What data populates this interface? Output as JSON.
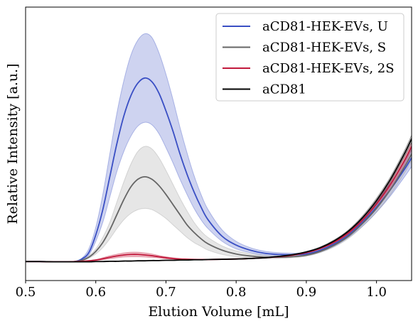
{
  "chart_data": {
    "type": "line",
    "title": "",
    "xlabel": "Elution Volume [mL]",
    "ylabel": "Relative Intensity [a.u.]",
    "xlim": [
      0.5,
      1.05
    ],
    "ylim": [
      -0.03,
      1.05
    ],
    "xticks": [
      0.5,
      0.6,
      0.7,
      0.8,
      0.9,
      1.0
    ],
    "xtick_labels": [
      "0.5",
      "0.6",
      "0.7",
      "0.8",
      "0.9",
      "1.0"
    ],
    "yticks_visible": false,
    "grid": false,
    "legend_position": "top-right",
    "x": [
      0.5,
      0.52,
      0.54,
      0.56,
      0.57,
      0.58,
      0.59,
      0.6,
      0.61,
      0.62,
      0.63,
      0.64,
      0.65,
      0.66,
      0.67,
      0.68,
      0.69,
      0.7,
      0.71,
      0.72,
      0.73,
      0.74,
      0.75,
      0.76,
      0.78,
      0.8,
      0.82,
      0.84,
      0.86,
      0.88,
      0.9,
      0.92,
      0.94,
      0.96,
      0.98,
      1.0,
      1.02,
      1.04,
      1.05
    ],
    "series": [
      {
        "name": "aCD81-HEK-EVs, U",
        "color": "#3a4fc4",
        "band_color": "#3a4fc4",
        "values": [
          0.045,
          0.045,
          0.044,
          0.044,
          0.045,
          0.055,
          0.08,
          0.15,
          0.25,
          0.38,
          0.51,
          0.62,
          0.7,
          0.75,
          0.77,
          0.755,
          0.71,
          0.64,
          0.56,
          0.47,
          0.39,
          0.32,
          0.26,
          0.21,
          0.145,
          0.11,
          0.09,
          0.078,
          0.073,
          0.072,
          0.075,
          0.09,
          0.115,
          0.15,
          0.2,
          0.26,
          0.33,
          0.41,
          0.455
        ],
        "lower": [
          0.045,
          0.045,
          0.044,
          0.044,
          0.045,
          0.053,
          0.07,
          0.125,
          0.2,
          0.3,
          0.4,
          0.48,
          0.54,
          0.58,
          0.595,
          0.585,
          0.55,
          0.495,
          0.435,
          0.37,
          0.31,
          0.255,
          0.21,
          0.175,
          0.125,
          0.095,
          0.08,
          0.07,
          0.066,
          0.066,
          0.069,
          0.083,
          0.106,
          0.14,
          0.185,
          0.24,
          0.305,
          0.38,
          0.42
        ],
        "upper": [
          0.045,
          0.045,
          0.044,
          0.044,
          0.045,
          0.058,
          0.095,
          0.18,
          0.31,
          0.47,
          0.63,
          0.76,
          0.86,
          0.92,
          0.945,
          0.93,
          0.87,
          0.785,
          0.685,
          0.575,
          0.475,
          0.385,
          0.31,
          0.25,
          0.17,
          0.125,
          0.1,
          0.086,
          0.08,
          0.078,
          0.081,
          0.097,
          0.124,
          0.16,
          0.215,
          0.28,
          0.355,
          0.44,
          0.49
        ]
      },
      {
        "name": "aCD81-HEK-EVs, S",
        "color": "#666666",
        "band_color": "#9a9a9a",
        "values": [
          0.045,
          0.045,
          0.044,
          0.044,
          0.045,
          0.05,
          0.062,
          0.085,
          0.12,
          0.17,
          0.23,
          0.29,
          0.34,
          0.37,
          0.38,
          0.37,
          0.345,
          0.31,
          0.27,
          0.23,
          0.19,
          0.16,
          0.135,
          0.115,
          0.09,
          0.075,
          0.067,
          0.063,
          0.062,
          0.064,
          0.07,
          0.085,
          0.11,
          0.145,
          0.195,
          0.255,
          0.33,
          0.42,
          0.47
        ],
        "lower": [
          0.045,
          0.045,
          0.044,
          0.044,
          0.045,
          0.049,
          0.058,
          0.075,
          0.1,
          0.135,
          0.175,
          0.21,
          0.235,
          0.25,
          0.255,
          0.25,
          0.235,
          0.215,
          0.19,
          0.165,
          0.14,
          0.12,
          0.105,
          0.09,
          0.073,
          0.064,
          0.059,
          0.057,
          0.057,
          0.06,
          0.066,
          0.08,
          0.103,
          0.136,
          0.183,
          0.24,
          0.31,
          0.395,
          0.445
        ],
        "upper": [
          0.045,
          0.045,
          0.044,
          0.044,
          0.045,
          0.052,
          0.067,
          0.095,
          0.14,
          0.2,
          0.28,
          0.36,
          0.43,
          0.48,
          0.5,
          0.49,
          0.455,
          0.405,
          0.35,
          0.295,
          0.245,
          0.2,
          0.165,
          0.14,
          0.107,
          0.087,
          0.076,
          0.07,
          0.068,
          0.068,
          0.074,
          0.09,
          0.117,
          0.154,
          0.207,
          0.27,
          0.35,
          0.445,
          0.495
        ]
      },
      {
        "name": "aCD81-HEK-EVs, 2S",
        "color": "#c2193c",
        "band_color": "#c2193c",
        "values": [
          0.045,
          0.045,
          0.044,
          0.044,
          0.045,
          0.046,
          0.048,
          0.051,
          0.056,
          0.062,
          0.067,
          0.071,
          0.073,
          0.073,
          0.071,
          0.068,
          0.064,
          0.06,
          0.057,
          0.055,
          0.054,
          0.053,
          0.053,
          0.053,
          0.054,
          0.055,
          0.057,
          0.06,
          0.064,
          0.07,
          0.08,
          0.097,
          0.122,
          0.158,
          0.208,
          0.272,
          0.35,
          0.445,
          0.5
        ],
        "lower": [
          0.045,
          0.045,
          0.044,
          0.044,
          0.045,
          0.046,
          0.047,
          0.049,
          0.052,
          0.056,
          0.06,
          0.063,
          0.064,
          0.064,
          0.063,
          0.061,
          0.059,
          0.056,
          0.054,
          0.053,
          0.052,
          0.052,
          0.052,
          0.052,
          0.053,
          0.054,
          0.056,
          0.059,
          0.063,
          0.069,
          0.078,
          0.094,
          0.118,
          0.153,
          0.2,
          0.262,
          0.338,
          0.43,
          0.485
        ],
        "upper": [
          0.045,
          0.045,
          0.044,
          0.044,
          0.045,
          0.046,
          0.049,
          0.053,
          0.06,
          0.068,
          0.074,
          0.079,
          0.082,
          0.082,
          0.079,
          0.075,
          0.069,
          0.064,
          0.06,
          0.057,
          0.056,
          0.055,
          0.054,
          0.054,
          0.055,
          0.056,
          0.058,
          0.061,
          0.065,
          0.071,
          0.082,
          0.1,
          0.126,
          0.163,
          0.216,
          0.282,
          0.362,
          0.46,
          0.515
        ]
      },
      {
        "name": "aCD81",
        "color": "#000000",
        "band_color": "#000000",
        "values": [
          0.045,
          0.045,
          0.044,
          0.044,
          0.044,
          0.044,
          0.044,
          0.045,
          0.045,
          0.046,
          0.046,
          0.047,
          0.047,
          0.048,
          0.048,
          0.049,
          0.049,
          0.05,
          0.05,
          0.051,
          0.051,
          0.052,
          0.052,
          0.053,
          0.054,
          0.055,
          0.057,
          0.06,
          0.065,
          0.072,
          0.083,
          0.1,
          0.127,
          0.165,
          0.218,
          0.286,
          0.37,
          0.472,
          0.53
        ],
        "lower": [
          0.045,
          0.045,
          0.044,
          0.044,
          0.044,
          0.044,
          0.044,
          0.045,
          0.045,
          0.046,
          0.046,
          0.047,
          0.047,
          0.048,
          0.048,
          0.049,
          0.049,
          0.05,
          0.05,
          0.051,
          0.051,
          0.052,
          0.052,
          0.053,
          0.054,
          0.055,
          0.057,
          0.06,
          0.064,
          0.071,
          0.081,
          0.097,
          0.123,
          0.16,
          0.211,
          0.277,
          0.36,
          0.46,
          0.516
        ],
        "upper": [
          0.045,
          0.045,
          0.044,
          0.044,
          0.044,
          0.044,
          0.044,
          0.045,
          0.045,
          0.046,
          0.046,
          0.047,
          0.047,
          0.048,
          0.048,
          0.049,
          0.049,
          0.05,
          0.05,
          0.051,
          0.051,
          0.052,
          0.052,
          0.053,
          0.054,
          0.055,
          0.057,
          0.06,
          0.066,
          0.073,
          0.085,
          0.103,
          0.131,
          0.17,
          0.225,
          0.295,
          0.38,
          0.484,
          0.544
        ]
      }
    ]
  }
}
